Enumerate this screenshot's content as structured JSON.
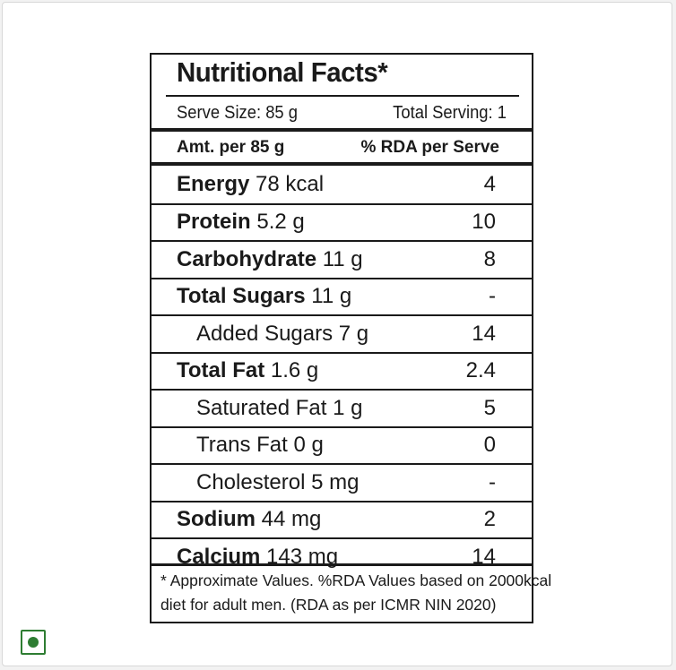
{
  "label": {
    "title": "Nutritional Facts*",
    "serve_size": "Serve Size: 85 g",
    "total_serving": "Total Serving: 1",
    "amount_header": "Amt. per 85 g",
    "rda_header": "% RDA per Serve",
    "rows": [
      {
        "bold": "Energy",
        "rest": " 78 kcal",
        "rda": "4",
        "indent": false
      },
      {
        "bold": "Protein",
        "rest": " 5.2 g",
        "rda": "10",
        "indent": false
      },
      {
        "bold": "Carbohydrate",
        "rest": " 11 g",
        "rda": "8",
        "indent": false
      },
      {
        "bold": "Total Sugars",
        "rest": " 11 g",
        "rda": "-",
        "indent": false
      },
      {
        "bold": "",
        "rest": "Added Sugars 7 g",
        "rda": "14",
        "indent": true
      },
      {
        "bold": "Total Fat",
        "rest": " 1.6 g",
        "rda": "2.4",
        "indent": false
      },
      {
        "bold": "",
        "rest": "Saturated Fat 1 g",
        "rda": "5",
        "indent": true
      },
      {
        "bold": "",
        "rest": "Trans Fat 0 g",
        "rda": "0",
        "indent": true
      },
      {
        "bold": "",
        "rest": "Cholesterol 5 mg",
        "rda": "-",
        "indent": true
      },
      {
        "bold": "Sodium",
        "rest": " 44 mg",
        "rda": "2",
        "indent": false
      },
      {
        "bold": "Calcium",
        "rest": " 143 mg",
        "rda": "14",
        "indent": false
      }
    ],
    "footnote_line1": "* Approximate Values. %RDA Values based on 2000kcal",
    "footnote_line2": "diet for adult men. (RDA as per ICMR NIN 2020)"
  },
  "veg_mark": {
    "icon": "veg-indicator-icon",
    "color": "#2e7d32"
  }
}
